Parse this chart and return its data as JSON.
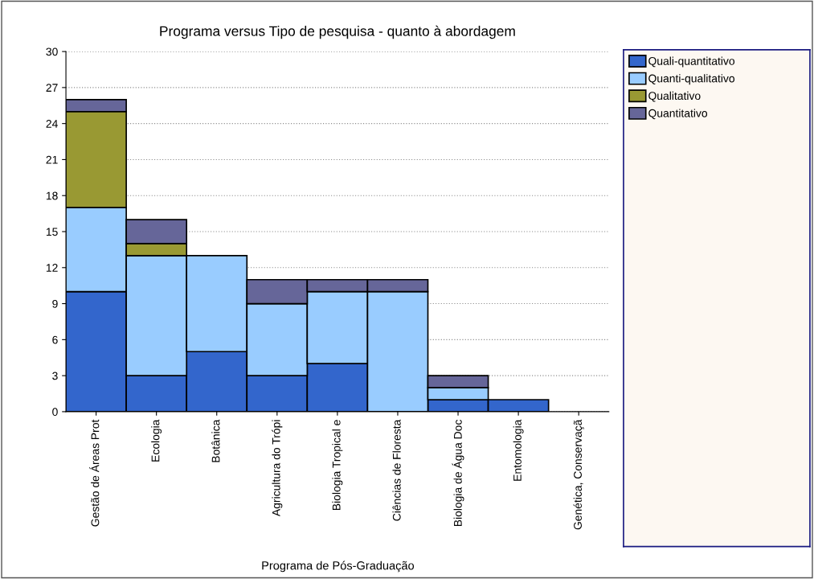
{
  "chart_data": {
    "type": "bar",
    "stacked": true,
    "title": "Programa versus Tipo de pesquisa - quanto à abordagem",
    "xlabel": "Programa de Pós-Graduação",
    "categories": [
      "Gestão de Áreas Prot",
      "Ecologia",
      "Botânica",
      "Agricultura do Trópi",
      "Biologia Tropical e",
      "Ciências de Floresta",
      "Biologia de Água Doc",
      "Entomologia",
      "Genética, Conservaçã"
    ],
    "series": [
      {
        "name": "Quali-quantitativo",
        "color": "#3366cc",
        "values": [
          10,
          3,
          5,
          3,
          4,
          0,
          1,
          1,
          0
        ]
      },
      {
        "name": "Quanti-qualitativo",
        "color": "#99ccff",
        "values": [
          7,
          10,
          8,
          6,
          6,
          10,
          1,
          0,
          0
        ]
      },
      {
        "name": "Qualitativo",
        "color": "#999933",
        "values": [
          8,
          1,
          0,
          0,
          0,
          0,
          0,
          0,
          0
        ]
      },
      {
        "name": "Quantitativo",
        "color": "#666699",
        "values": [
          1,
          2,
          0,
          2,
          1,
          1,
          1,
          0,
          0
        ]
      }
    ],
    "ylim": [
      0,
      30
    ],
    "yticks": [
      0,
      3,
      6,
      9,
      12,
      15,
      18,
      21,
      24,
      27,
      30
    ],
    "grid": "y",
    "legend": "right"
  }
}
